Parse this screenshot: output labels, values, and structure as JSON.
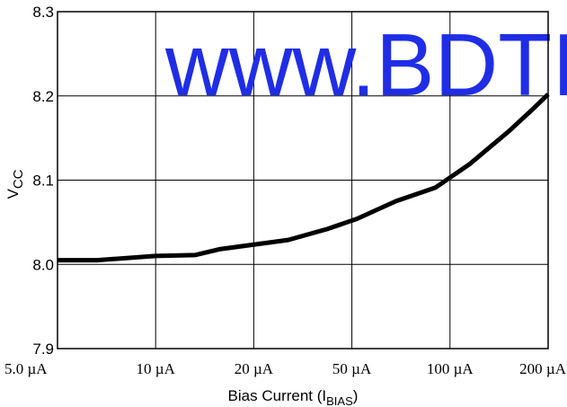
{
  "chart_data": {
    "type": "line",
    "title": "",
    "xlabel": {
      "main": "Bias Current (I",
      "sub": "BIAS",
      "close": ")"
    },
    "ylabel": {
      "main": "V",
      "sub": "CC"
    },
    "x_tick_labels": [
      "5.0 µA",
      "10 µA",
      "20 µA",
      "50 µA",
      "100 µA",
      "200 µA"
    ],
    "y_tick_labels": [
      "7.9",
      "8.0",
      "8.1",
      "8.2",
      "8.3"
    ],
    "y_ticks": [
      7.9,
      8.0,
      8.1,
      8.2,
      8.3
    ],
    "ylim": [
      7.9,
      8.3
    ],
    "x_tick_count": 6,
    "grid": true,
    "series": [
      {
        "x_pos": [
          0.0,
          0.08,
          0.2,
          0.28,
          0.33,
          0.47,
          0.55,
          0.61,
          0.69,
          0.77,
          0.84,
          0.92,
          0.97,
          1.0
        ],
        "values": [
          8.005,
          8.005,
          8.01,
          8.011,
          8.018,
          8.029,
          8.042,
          8.054,
          8.075,
          8.091,
          8.119,
          8.158,
          8.185,
          8.202
        ],
        "color": "#000000"
      }
    ],
    "watermark": "www.BDTI",
    "watermark_color": "#1f2ee6",
    "grid_color": "#000000"
  }
}
